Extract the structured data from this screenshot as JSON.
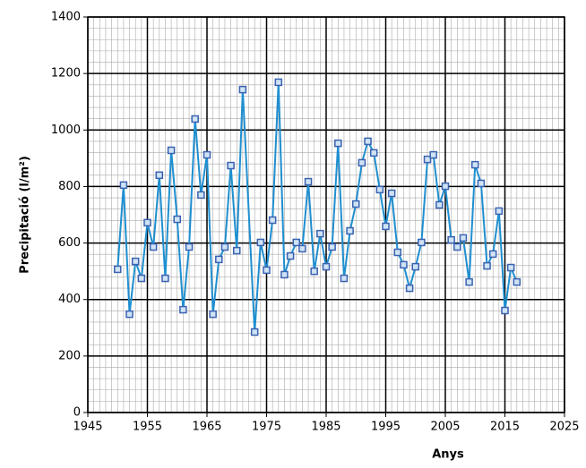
{
  "chart_data": {
    "type": "line",
    "xlabel": "Anys",
    "ylabel": "Precipitació (l/m²)",
    "x": [
      1950,
      1951,
      1952,
      1953,
      1954,
      1955,
      1956,
      1957,
      1958,
      1959,
      1960,
      1961,
      1962,
      1963,
      1964,
      1965,
      1966,
      1967,
      1968,
      1969,
      1970,
      1971,
      1973,
      1974,
      1975,
      1976,
      1977,
      1978,
      1979,
      1980,
      1981,
      1982,
      1983,
      1984,
      1985,
      1986,
      1987,
      1988,
      1989,
      1990,
      1991,
      1992,
      1993,
      1994,
      1995,
      1996,
      1997,
      1998,
      1999,
      2000,
      2001,
      2002,
      2003,
      2004,
      2005,
      2006,
      2007,
      2008,
      2009,
      2010,
      2011,
      2012,
      2013,
      2014,
      2015,
      2016,
      2017
    ],
    "series": [
      {
        "name": "Precipitació",
        "color": "#1f8fd0",
        "values": [
          507,
          805,
          348,
          535,
          475,
          672,
          586,
          840,
          475,
          928,
          684,
          364,
          586,
          1039,
          770,
          912,
          348,
          542,
          586,
          874,
          573,
          1143,
          285,
          602,
          504,
          681,
          1169,
          488,
          554,
          602,
          580,
          817,
          500,
          633,
          516,
          586,
          953,
          475,
          643,
          738,
          884,
          960,
          919,
          789,
          659,
          776,
          567,
          523,
          440,
          516,
          602,
          896,
          912,
          735,
          801,
          611,
          586,
          618,
          462,
          877,
          811,
          519,
          561,
          713,
          361,
          513,
          462
        ]
      }
    ],
    "xlim": [
      1945,
      2025
    ],
    "xticks": [
      1945,
      1955,
      1965,
      1975,
      1985,
      1995,
      2005,
      2015,
      2025
    ],
    "ylim": [
      0,
      1400
    ],
    "yticks": [
      0,
      200,
      400,
      600,
      800,
      1000,
      1200,
      1400
    ],
    "grid": true
  }
}
